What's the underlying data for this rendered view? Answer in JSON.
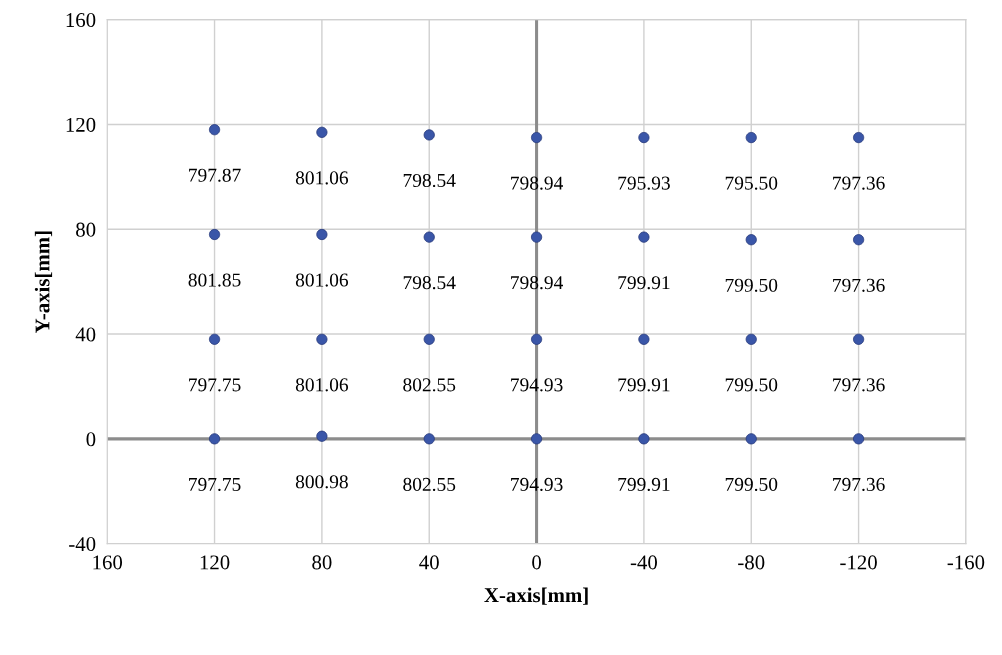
{
  "chart_data": {
    "type": "scatter",
    "xlabel": "X-axis[mm]",
    "ylabel": "Y-axis[mm]",
    "xlim": [
      160,
      -160
    ],
    "xticks": [
      160,
      120,
      80,
      40,
      0,
      -40,
      -80,
      -120,
      -160
    ],
    "ylim": [
      -40,
      160
    ],
    "yticks": [
      -40,
      0,
      40,
      80,
      120,
      160
    ],
    "grid": true,
    "marker": "circle",
    "series": [
      {
        "color": "#3a56a8",
        "x": [
          120,
          80,
          40,
          0,
          -40,
          -80,
          -120
        ],
        "values": [
          118,
          117,
          116,
          115,
          115,
          115,
          115
        ]
      },
      {
        "color": "#3a56a8",
        "x": [
          120,
          80,
          40,
          0,
          -40,
          -80,
          -120
        ],
        "values": [
          78,
          78,
          77,
          77,
          77,
          76,
          76
        ]
      },
      {
        "color": "#3a56a8",
        "x": [
          120,
          80,
          40,
          0,
          -40,
          -80,
          -120
        ],
        "values": [
          38,
          38,
          38,
          38,
          38,
          38,
          38
        ]
      },
      {
        "color": "#3a56a8",
        "x": [
          120,
          80,
          40,
          0,
          -40,
          -80,
          -120
        ],
        "values": [
          0,
          1,
          0,
          0,
          0,
          0,
          0
        ]
      }
    ],
    "annotations": [
      {
        "text": "797.87",
        "x": 120,
        "y": 118
      },
      {
        "text": "801.06",
        "x": 80,
        "y": 117
      },
      {
        "text": "798.54",
        "x": 40,
        "y": 116
      },
      {
        "text": "798.94",
        "x": 0,
        "y": 115
      },
      {
        "text": "795.93",
        "x": -40,
        "y": 115
      },
      {
        "text": "795.50",
        "x": -80,
        "y": 115
      },
      {
        "text": "797.36",
        "x": -120,
        "y": 115
      },
      {
        "text": "801.85",
        "x": 120,
        "y": 78
      },
      {
        "text": "801.06",
        "x": 80,
        "y": 78
      },
      {
        "text": "798.54",
        "x": 40,
        "y": 77
      },
      {
        "text": "798.94",
        "x": 0,
        "y": 77
      },
      {
        "text": "799.91",
        "x": -40,
        "y": 77
      },
      {
        "text": "799.50",
        "x": -80,
        "y": 76
      },
      {
        "text": "797.36",
        "x": -120,
        "y": 76
      },
      {
        "text": "797.75",
        "x": 120,
        "y": 38
      },
      {
        "text": "801.06",
        "x": 80,
        "y": 38
      },
      {
        "text": "802.55",
        "x": 40,
        "y": 38
      },
      {
        "text": "794.93",
        "x": 0,
        "y": 38
      },
      {
        "text": "799.91",
        "x": -40,
        "y": 38
      },
      {
        "text": "799.50",
        "x": -80,
        "y": 38
      },
      {
        "text": "797.36",
        "x": -120,
        "y": 38
      },
      {
        "text": "797.75",
        "x": 120,
        "y": 0
      },
      {
        "text": "800.98",
        "x": 80,
        "y": 1
      },
      {
        "text": "802.55",
        "x": 40,
        "y": 0
      },
      {
        "text": "794.93",
        "x": 0,
        "y": 0
      },
      {
        "text": "799.91",
        "x": -40,
        "y": 0
      },
      {
        "text": "799.50",
        "x": -80,
        "y": 0
      },
      {
        "text": "797.36",
        "x": -120,
        "y": 0
      }
    ]
  }
}
